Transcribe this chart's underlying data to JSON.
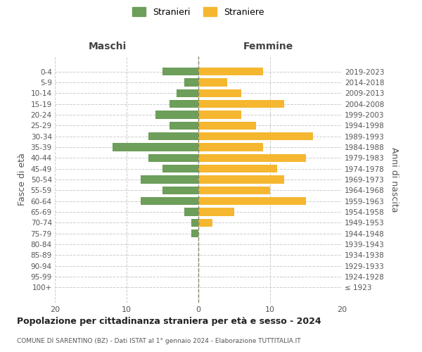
{
  "age_groups": [
    "0-4",
    "5-9",
    "10-14",
    "15-19",
    "20-24",
    "25-29",
    "30-34",
    "35-39",
    "40-44",
    "45-49",
    "50-54",
    "55-59",
    "60-64",
    "65-69",
    "70-74",
    "75-79",
    "80-84",
    "85-89",
    "90-94",
    "95-99",
    "100+"
  ],
  "birth_years": [
    "2019-2023",
    "2014-2018",
    "2009-2013",
    "2004-2008",
    "1999-2003",
    "1994-1998",
    "1989-1993",
    "1984-1988",
    "1979-1983",
    "1974-1978",
    "1969-1973",
    "1964-1968",
    "1959-1963",
    "1954-1958",
    "1949-1953",
    "1944-1948",
    "1939-1943",
    "1934-1938",
    "1929-1933",
    "1924-1928",
    "≤ 1923"
  ],
  "maschi": [
    5,
    2,
    3,
    4,
    6,
    4,
    7,
    12,
    7,
    5,
    8,
    5,
    8,
    2,
    1,
    1,
    0,
    0,
    0,
    0,
    0
  ],
  "femmine": [
    9,
    4,
    6,
    12,
    6,
    8,
    16,
    9,
    15,
    11,
    12,
    10,
    15,
    5,
    2,
    0,
    0,
    0,
    0,
    0,
    0
  ],
  "color_maschi": "#6d9e5a",
  "color_femmine": "#f5b730",
  "xlim": 20,
  "title": "Popolazione per cittadinanza straniera per età e sesso - 2024",
  "subtitle": "COMUNE DI SARENTINO (BZ) - Dati ISTAT al 1° gennaio 2024 - Elaborazione TUTTITALIA.IT",
  "ylabel_left": "Fasce di età",
  "ylabel_right": "Anni di nascita",
  "label_maschi": "Stranieri",
  "label_femmine": "Straniere",
  "header_left": "Maschi",
  "header_right": "Femmine",
  "bg_color": "#ffffff",
  "grid_color": "#cccccc"
}
